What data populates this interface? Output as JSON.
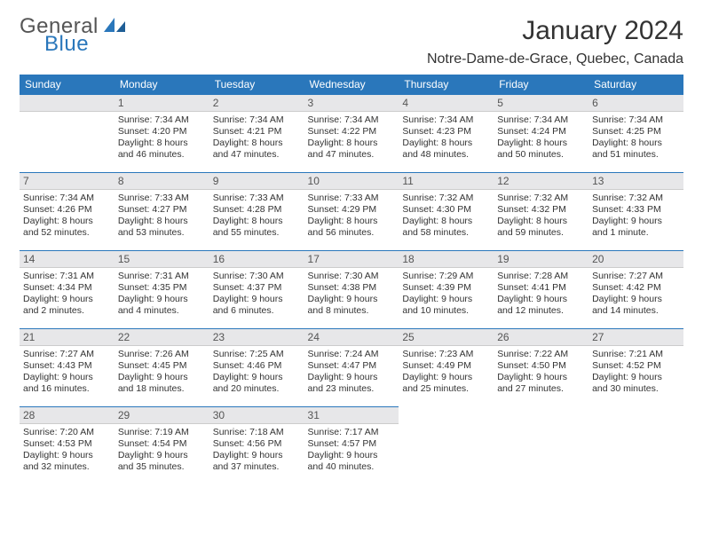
{
  "logo": {
    "word1": "General",
    "word2": "Blue"
  },
  "title": "January 2024",
  "location": "Notre-Dame-de-Grace, Quebec, Canada",
  "colors": {
    "header_bg": "#2a77bb",
    "header_text": "#ffffff",
    "day_bar_bg": "#e7e7e9",
    "rule": "#2a77bb",
    "text": "#333333",
    "logo_gray": "#555555",
    "logo_blue": "#2a77bb"
  },
  "days_of_week": [
    "Sunday",
    "Monday",
    "Tuesday",
    "Wednesday",
    "Thursday",
    "Friday",
    "Saturday"
  ],
  "weeks": [
    [
      null,
      {
        "n": "1",
        "sunrise": "7:34 AM",
        "sunset": "4:20 PM",
        "daylight": "8 hours and 46 minutes."
      },
      {
        "n": "2",
        "sunrise": "7:34 AM",
        "sunset": "4:21 PM",
        "daylight": "8 hours and 47 minutes."
      },
      {
        "n": "3",
        "sunrise": "7:34 AM",
        "sunset": "4:22 PM",
        "daylight": "8 hours and 47 minutes."
      },
      {
        "n": "4",
        "sunrise": "7:34 AM",
        "sunset": "4:23 PM",
        "daylight": "8 hours and 48 minutes."
      },
      {
        "n": "5",
        "sunrise": "7:34 AM",
        "sunset": "4:24 PM",
        "daylight": "8 hours and 50 minutes."
      },
      {
        "n": "6",
        "sunrise": "7:34 AM",
        "sunset": "4:25 PM",
        "daylight": "8 hours and 51 minutes."
      }
    ],
    [
      {
        "n": "7",
        "sunrise": "7:34 AM",
        "sunset": "4:26 PM",
        "daylight": "8 hours and 52 minutes."
      },
      {
        "n": "8",
        "sunrise": "7:33 AM",
        "sunset": "4:27 PM",
        "daylight": "8 hours and 53 minutes."
      },
      {
        "n": "9",
        "sunrise": "7:33 AM",
        "sunset": "4:28 PM",
        "daylight": "8 hours and 55 minutes."
      },
      {
        "n": "10",
        "sunrise": "7:33 AM",
        "sunset": "4:29 PM",
        "daylight": "8 hours and 56 minutes."
      },
      {
        "n": "11",
        "sunrise": "7:32 AM",
        "sunset": "4:30 PM",
        "daylight": "8 hours and 58 minutes."
      },
      {
        "n": "12",
        "sunrise": "7:32 AM",
        "sunset": "4:32 PM",
        "daylight": "8 hours and 59 minutes."
      },
      {
        "n": "13",
        "sunrise": "7:32 AM",
        "sunset": "4:33 PM",
        "daylight": "9 hours and 1 minute."
      }
    ],
    [
      {
        "n": "14",
        "sunrise": "7:31 AM",
        "sunset": "4:34 PM",
        "daylight": "9 hours and 2 minutes."
      },
      {
        "n": "15",
        "sunrise": "7:31 AM",
        "sunset": "4:35 PM",
        "daylight": "9 hours and 4 minutes."
      },
      {
        "n": "16",
        "sunrise": "7:30 AM",
        "sunset": "4:37 PM",
        "daylight": "9 hours and 6 minutes."
      },
      {
        "n": "17",
        "sunrise": "7:30 AM",
        "sunset": "4:38 PM",
        "daylight": "9 hours and 8 minutes."
      },
      {
        "n": "18",
        "sunrise": "7:29 AM",
        "sunset": "4:39 PM",
        "daylight": "9 hours and 10 minutes."
      },
      {
        "n": "19",
        "sunrise": "7:28 AM",
        "sunset": "4:41 PM",
        "daylight": "9 hours and 12 minutes."
      },
      {
        "n": "20",
        "sunrise": "7:27 AM",
        "sunset": "4:42 PM",
        "daylight": "9 hours and 14 minutes."
      }
    ],
    [
      {
        "n": "21",
        "sunrise": "7:27 AM",
        "sunset": "4:43 PM",
        "daylight": "9 hours and 16 minutes."
      },
      {
        "n": "22",
        "sunrise": "7:26 AM",
        "sunset": "4:45 PM",
        "daylight": "9 hours and 18 minutes."
      },
      {
        "n": "23",
        "sunrise": "7:25 AM",
        "sunset": "4:46 PM",
        "daylight": "9 hours and 20 minutes."
      },
      {
        "n": "24",
        "sunrise": "7:24 AM",
        "sunset": "4:47 PM",
        "daylight": "9 hours and 23 minutes."
      },
      {
        "n": "25",
        "sunrise": "7:23 AM",
        "sunset": "4:49 PM",
        "daylight": "9 hours and 25 minutes."
      },
      {
        "n": "26",
        "sunrise": "7:22 AM",
        "sunset": "4:50 PM",
        "daylight": "9 hours and 27 minutes."
      },
      {
        "n": "27",
        "sunrise": "7:21 AM",
        "sunset": "4:52 PM",
        "daylight": "9 hours and 30 minutes."
      }
    ],
    [
      {
        "n": "28",
        "sunrise": "7:20 AM",
        "sunset": "4:53 PM",
        "daylight": "9 hours and 32 minutes."
      },
      {
        "n": "29",
        "sunrise": "7:19 AM",
        "sunset": "4:54 PM",
        "daylight": "9 hours and 35 minutes."
      },
      {
        "n": "30",
        "sunrise": "7:18 AM",
        "sunset": "4:56 PM",
        "daylight": "9 hours and 37 minutes."
      },
      {
        "n": "31",
        "sunrise": "7:17 AM",
        "sunset": "4:57 PM",
        "daylight": "9 hours and 40 minutes."
      },
      null,
      null,
      null
    ]
  ],
  "labels": {
    "sunrise": "Sunrise:",
    "sunset": "Sunset:",
    "daylight": "Daylight:"
  }
}
